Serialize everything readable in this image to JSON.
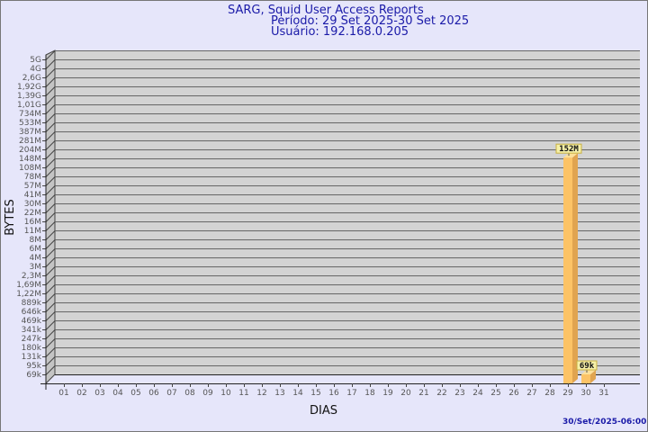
{
  "chart_data": {
    "type": "bar",
    "title": "SARG, Squid User Access Reports",
    "subtitle_period": "Período: 29 Set 2025-30 Set 2025",
    "subtitle_user": "Usuário: 192.168.0.205",
    "xlabel": "DIAS",
    "ylabel": "BYTES",
    "yscale": "log",
    "grid": true,
    "yticks": [
      "5G",
      "4G",
      "2,6G",
      "1,92G",
      "1,39G",
      "1,01G",
      "734M",
      "533M",
      "387M",
      "281M",
      "204M",
      "148M",
      "108M",
      "78M",
      "57M",
      "41M",
      "30M",
      "22M",
      "16M",
      "11M",
      "8M",
      "6M",
      "4M",
      "3M",
      "2,3M",
      "1,69M",
      "1,22M",
      "889k",
      "646k",
      "469k",
      "341k",
      "247k",
      "180k",
      "131k",
      "95k",
      "69k"
    ],
    "categories": [
      "01",
      "02",
      "03",
      "04",
      "05",
      "06",
      "07",
      "08",
      "09",
      "10",
      "11",
      "12",
      "13",
      "14",
      "15",
      "16",
      "17",
      "18",
      "19",
      "20",
      "21",
      "22",
      "23",
      "24",
      "25",
      "26",
      "27",
      "28",
      "29",
      "30",
      "31"
    ],
    "bars": [
      {
        "day": "29",
        "value": "152M"
      },
      {
        "day": "30",
        "value": "69k"
      }
    ],
    "colors": {
      "bar": "#fcc366",
      "bar_side": "#e0a450",
      "plot": "#d3d3d3",
      "title": "#1a1aa8"
    }
  },
  "footer": {
    "timestamp": "30/Set/2025-06:00"
  }
}
